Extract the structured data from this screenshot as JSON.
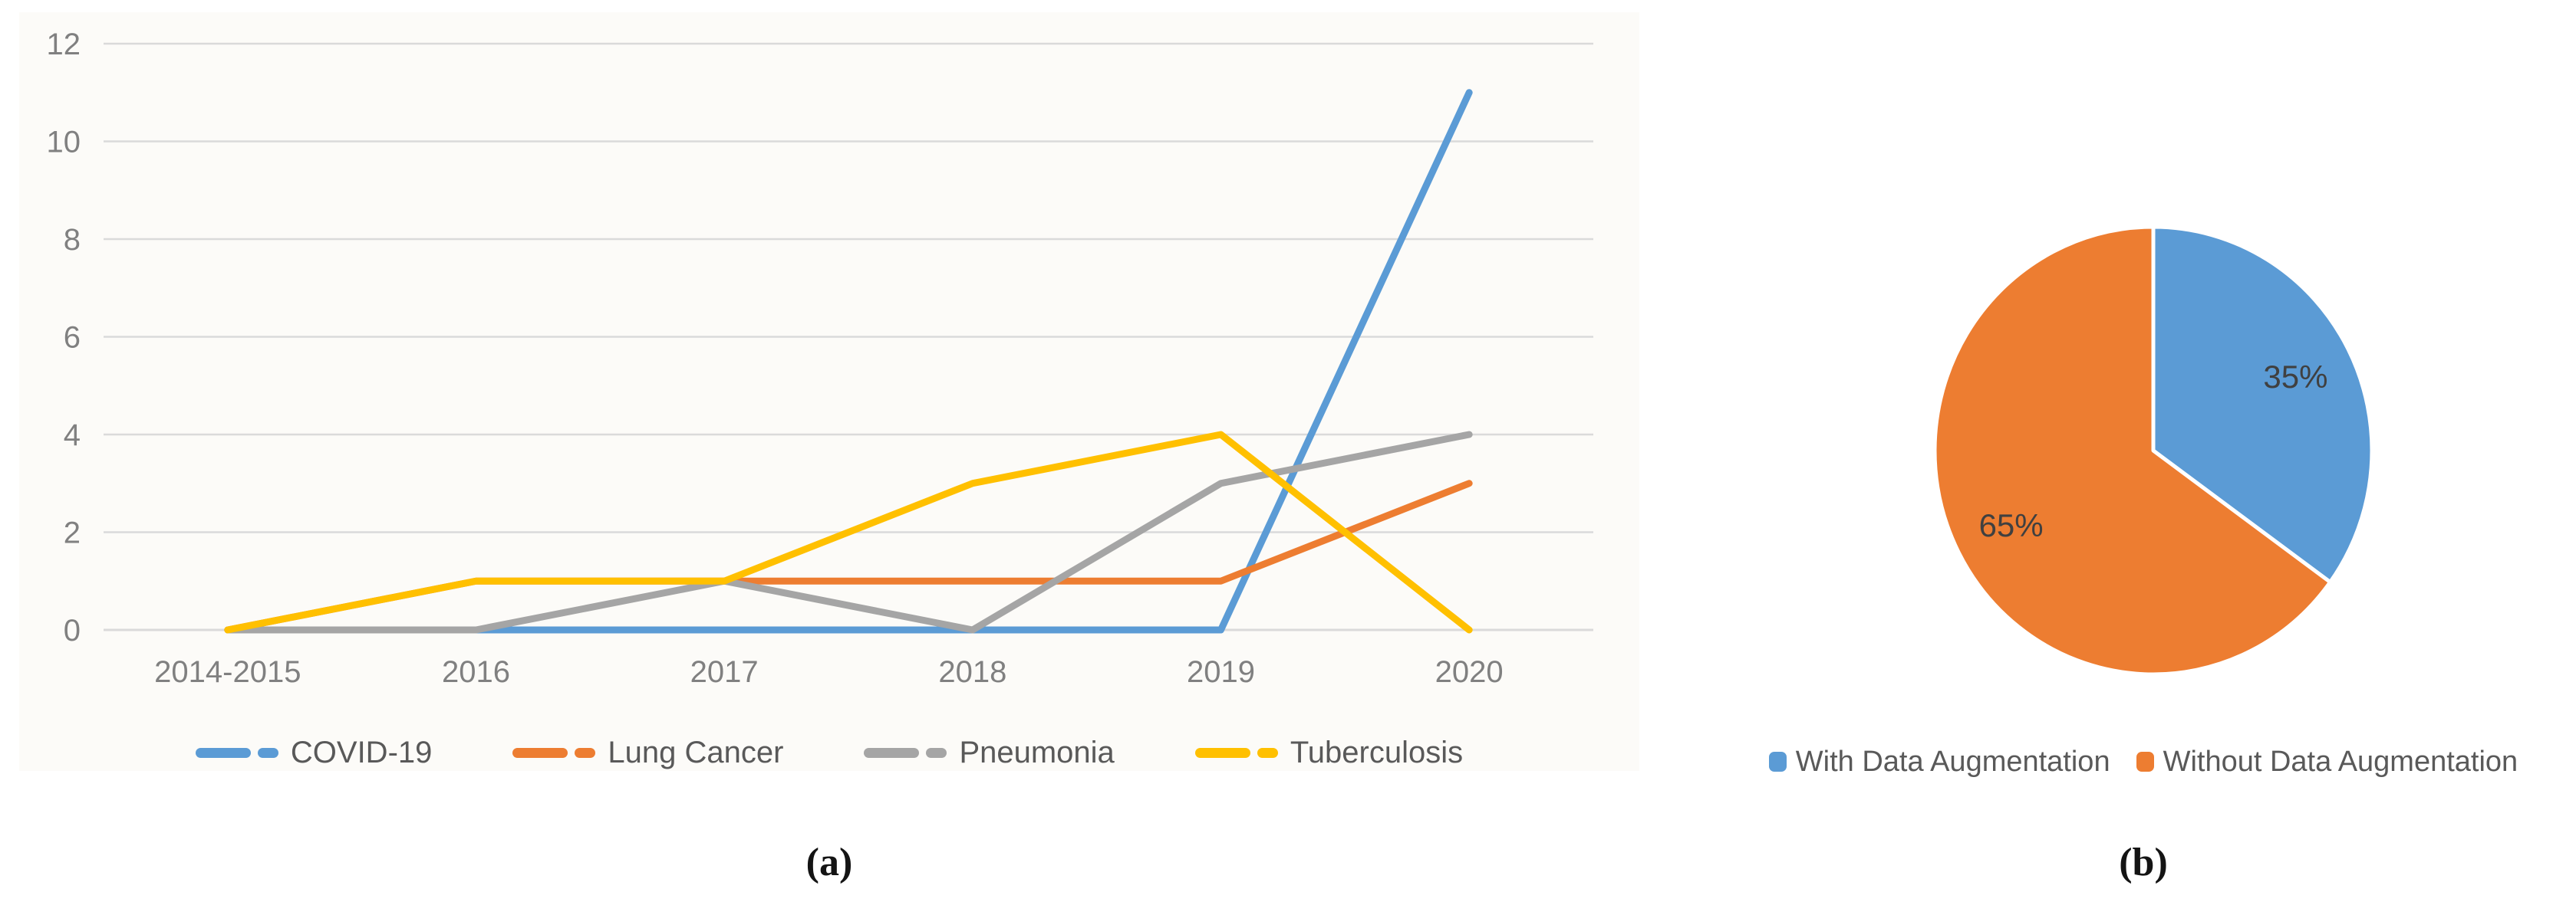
{
  "captions": {
    "a": "(a)",
    "b": "(b)"
  },
  "chart_data": [
    {
      "type": "line",
      "title": "",
      "xlabel": "",
      "ylabel": "",
      "categories": [
        "2014-2015",
        "2016",
        "2017",
        "2018",
        "2019",
        "2020"
      ],
      "series": [
        {
          "name": "COVID-19",
          "color": "#5B9BD5",
          "values": [
            0,
            0,
            0,
            0,
            0,
            11
          ]
        },
        {
          "name": "Lung Cancer",
          "color": "#ED7D31",
          "values": [
            0,
            1,
            1,
            1,
            1,
            3
          ]
        },
        {
          "name": "Pneumonia",
          "color": "#A5A5A5",
          "values": [
            0,
            0,
            1,
            0,
            3,
            4
          ]
        },
        {
          "name": "Tuberculosis",
          "color": "#FFC000",
          "values": [
            0,
            1,
            1,
            3,
            4,
            0
          ]
        }
      ],
      "ylim": [
        0,
        12
      ],
      "yticks": [
        0,
        2,
        4,
        6,
        8,
        10,
        12
      ],
      "grid": true,
      "legend_position": "bottom"
    },
    {
      "type": "pie",
      "title": "",
      "start_angle_deg": 0,
      "direction": "clockwise",
      "legend_position": "bottom",
      "slices": [
        {
          "label": "With Data Augmentation",
          "value": 35,
          "display": "35%",
          "color": "#5B9BD5"
        },
        {
          "label": "Without Data Augmentation",
          "value": 65,
          "display": "65%",
          "color": "#ED7D31"
        }
      ]
    }
  ],
  "styles": {
    "axis_text_color": "#808080",
    "legend_text_color": "#595959",
    "gridline_color": "#DADADA",
    "panel_background": "#FCFBF8",
    "pie_label_color": "#404040",
    "caption_color": "#141414",
    "slice_border_color": "#FFFFFF"
  }
}
